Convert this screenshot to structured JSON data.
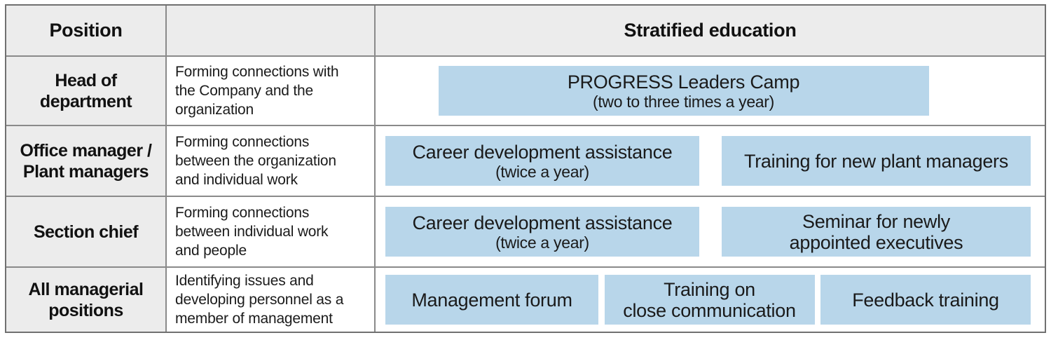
{
  "table": {
    "header": {
      "position": "Position",
      "education": "Stratified education"
    },
    "rows": [
      {
        "position": "Head of\ndepartment",
        "description": "Forming connections with\nthe Company and the\norganization",
        "courses": [
          {
            "title": "PROGRESS Leaders Camp",
            "subtitle": "(two to three times a year)"
          }
        ]
      },
      {
        "position": "Office manager /\nPlant managers",
        "description": "Forming connections\nbetween the organization\nand individual work",
        "courses": [
          {
            "title": "Career development assistance",
            "subtitle": "(twice a year)"
          },
          {
            "title": "Training for new plant managers"
          }
        ]
      },
      {
        "position": "Section chief",
        "description": "Forming connections\nbetween individual work\nand people",
        "courses": [
          {
            "title": "Career development assistance",
            "subtitle": "(twice a year)"
          },
          {
            "title": "Seminar for newly\nappointed executives"
          }
        ]
      },
      {
        "position": "All managerial\npositions",
        "description": "Identifying issues and\ndeveloping personnel as a\nmember of management",
        "courses": [
          {
            "title": "Management forum"
          },
          {
            "title": "Training on\nclose communication"
          },
          {
            "title": "Feedback training"
          }
        ]
      }
    ]
  },
  "colors": {
    "course_box": "#b8d6ea",
    "header_bg": "#ececec",
    "grid_line": "#8a8a8a",
    "outer_border": "#707070"
  }
}
